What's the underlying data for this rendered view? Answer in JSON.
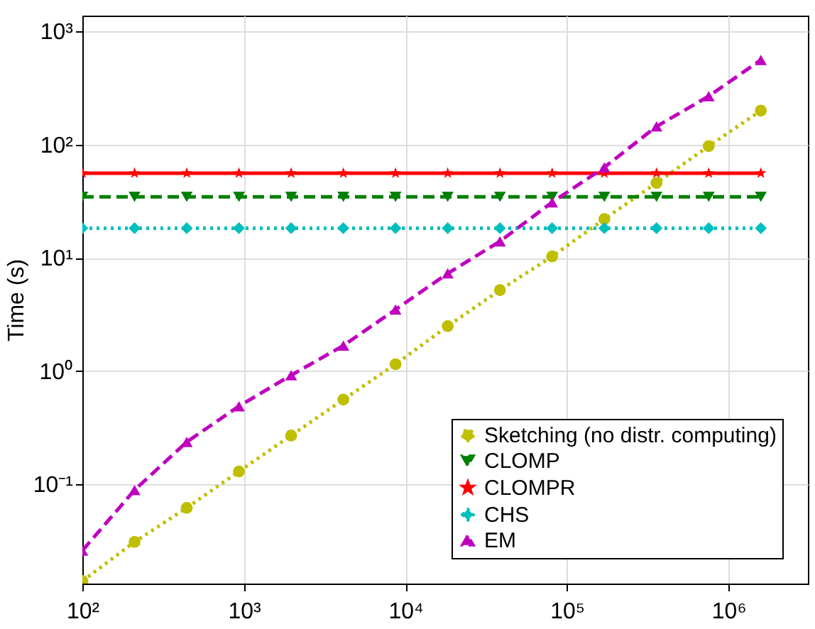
{
  "chart_data": {
    "type": "line",
    "ylabel": "Time (s)",
    "x": [
      100,
      210.4,
      442.8,
      931.8,
      1961,
      4126,
      8683,
      18270,
      38450,
      80910,
      170300,
      358300,
      754000,
      1585000
    ],
    "series": [
      {
        "name": "Sketching (no distr. computing)",
        "color": "#bfbf00",
        "marker": "circle",
        "line_style": "dotted",
        "values": [
          0.014,
          0.031,
          0.062,
          0.13,
          0.27,
          0.56,
          1.15,
          2.5,
          5.2,
          10.3,
          22,
          46,
          97,
          200
        ]
      },
      {
        "name": "CLOMP",
        "color": "#008000",
        "marker": "triangle-down",
        "line_style": "dashed",
        "values": [
          34.6,
          34.6,
          34.6,
          34.6,
          34.6,
          34.6,
          34.6,
          34.6,
          34.6,
          34.6,
          34.6,
          34.6,
          34.6,
          34.6
        ]
      },
      {
        "name": "CLOMPR",
        "color": "#ff0000",
        "marker": "star",
        "line_style": "solid",
        "values": [
          56,
          56,
          56,
          56,
          56,
          56,
          56,
          56,
          56,
          56,
          56,
          56,
          56,
          56
        ]
      },
      {
        "name": "CHS",
        "color": "#00bfbf",
        "marker": "diamond",
        "line_style": "dotted",
        "values": [
          18.3,
          18.3,
          18.3,
          18.3,
          18.3,
          18.3,
          18.3,
          18.3,
          18.3,
          18.3,
          18.3,
          18.3,
          18.3,
          18.3
        ]
      },
      {
        "name": "EM",
        "color": "#bf00bf",
        "marker": "triangle",
        "line_style": "dashed",
        "values": [
          0.026,
          0.089,
          0.237,
          0.49,
          0.92,
          1.68,
          3.5,
          7.3,
          14,
          31,
          63,
          145,
          268,
          560
        ]
      }
    ],
    "log": "xy",
    "xlim": [
      100,
      3100000
    ],
    "ylim": [
      0.0133,
      1380
    ],
    "xticks": [
      {
        "value": 100,
        "label": "10²"
      },
      {
        "value": 1000,
        "label": "10³"
      },
      {
        "value": 10000,
        "label": "10⁴"
      },
      {
        "value": 100000,
        "label": "10⁵"
      },
      {
        "value": 1000000,
        "label": "10⁶"
      }
    ],
    "yticks": [
      {
        "value": 0.1,
        "label": "10⁻¹"
      },
      {
        "value": 1,
        "label": "10⁰"
      },
      {
        "value": 10,
        "label": "10¹"
      },
      {
        "value": 100,
        "label": "10²"
      },
      {
        "value": 1000,
        "label": "10³"
      }
    ],
    "grid": true,
    "legend": "bottom right"
  }
}
